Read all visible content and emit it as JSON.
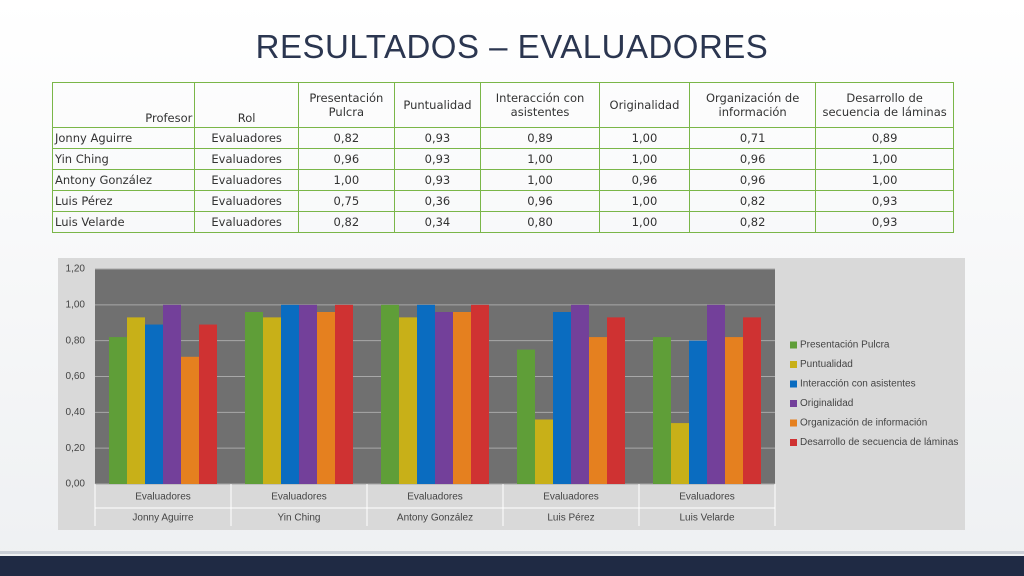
{
  "title": "RESULTADOS – EVALUADORES",
  "table": {
    "columns": [
      "Profesor",
      "Rol",
      "Presentación Pulcra",
      "Puntualidad",
      "Interacción con asistentes",
      "Originalidad",
      "Organización de información",
      "Desarrollo de secuencia de láminas"
    ],
    "rows": [
      [
        "Jonny Aguirre",
        "Evaluadores",
        "0,82",
        "0,93",
        "0,89",
        "1,00",
        "0,71",
        "0,89"
      ],
      [
        "Yin Ching",
        "Evaluadores",
        "0,96",
        "0,93",
        "1,00",
        "1,00",
        "0,96",
        "1,00"
      ],
      [
        "Antony González",
        "Evaluadores",
        "1,00",
        "0,93",
        "1,00",
        "0,96",
        "0,96",
        "1,00"
      ],
      [
        "Luis Pérez",
        "Evaluadores",
        "0,75",
        "0,36",
        "0,96",
        "1,00",
        "0,82",
        "0,93"
      ],
      [
        "Luis Velarde",
        "Evaluadores",
        "0,82",
        "0,34",
        "0,80",
        "1,00",
        "0,82",
        "0,93"
      ]
    ]
  },
  "chart_data": {
    "type": "bar",
    "categories": [
      "Jonny Aguirre",
      "Yin Ching",
      "Antony González",
      "Luis Pérez",
      "Luis Velarde"
    ],
    "roles": [
      "Evaluadores",
      "Evaluadores",
      "Evaluadores",
      "Evaluadores",
      "Evaluadores"
    ],
    "series": [
      {
        "name": "Presentación Pulcra",
        "color": "#5f9e38",
        "values": [
          0.82,
          0.96,
          1.0,
          0.75,
          0.82
        ]
      },
      {
        "name": "Puntualidad",
        "color": "#c8b018",
        "values": [
          0.93,
          0.93,
          0.93,
          0.36,
          0.34
        ]
      },
      {
        "name": "Interacción con asistentes",
        "color": "#0a6cc0",
        "values": [
          0.89,
          1.0,
          1.0,
          0.96,
          0.8
        ]
      },
      {
        "name": "Originalidad",
        "color": "#73409a",
        "values": [
          1.0,
          1.0,
          0.96,
          1.0,
          1.0
        ]
      },
      {
        "name": "Organización de información",
        "color": "#e5801f",
        "values": [
          0.71,
          0.96,
          0.96,
          0.82,
          0.82
        ]
      },
      {
        "name": "Desarrollo de secuencia de láminas",
        "color": "#cf3232",
        "values": [
          0.89,
          1.0,
          1.0,
          0.93,
          0.93
        ]
      }
    ],
    "ylim": [
      0,
      1.2
    ],
    "yticks": [
      {
        "value": 0,
        "label": "0,00"
      },
      {
        "value": 0.2,
        "label": "0,20"
      },
      {
        "value": 0.4,
        "label": "0,40"
      },
      {
        "value": 0.6,
        "label": "0,60"
      },
      {
        "value": 0.8,
        "label": "0,80"
      },
      {
        "value": 1.0,
        "label": "1,00"
      },
      {
        "value": 1.2,
        "label": "1,20"
      }
    ],
    "grid": true,
    "legend": "right"
  }
}
